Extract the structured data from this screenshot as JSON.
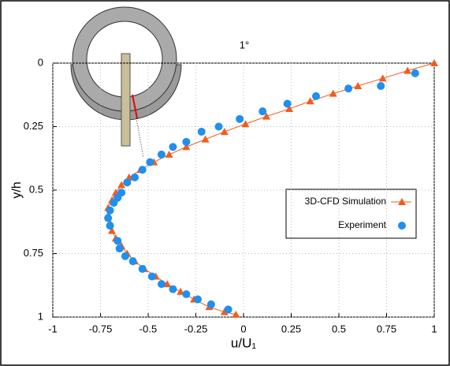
{
  "chart_data": {
    "type": "scatter",
    "title": "1°",
    "xlabel": "u/U₁",
    "ylabel": "y/h",
    "xlim": [
      -1,
      1
    ],
    "ylim": [
      0,
      1
    ],
    "y_inverted": true,
    "grid": true,
    "legend": "right",
    "xticks": [
      -1,
      -0.75,
      -0.5,
      -0.25,
      0,
      0.25,
      0.5,
      0.75,
      1
    ],
    "yticks": [
      0,
      0.25,
      0.5,
      0.75,
      1
    ],
    "series": [
      {
        "name": "3D-CFD Simulation",
        "color": "#f25c1e",
        "marker": "triangle",
        "line": true,
        "x": [
          1.0,
          0.86,
          0.73,
          0.6,
          0.47,
          0.35,
          0.24,
          0.12,
          0.01,
          -0.1,
          -0.2,
          -0.3,
          -0.39,
          -0.47,
          -0.54,
          -0.6,
          -0.64,
          -0.67,
          -0.69,
          -0.71,
          -0.71,
          -0.7,
          -0.69,
          -0.67,
          -0.64,
          -0.61,
          -0.57,
          -0.52,
          -0.46,
          -0.4,
          -0.33,
          -0.26,
          -0.18,
          -0.1,
          -0.04
        ],
        "y": [
          0,
          0.03,
          0.06,
          0.09,
          0.12,
          0.15,
          0.18,
          0.21,
          0.24,
          0.27,
          0.3,
          0.33,
          0.36,
          0.39,
          0.42,
          0.45,
          0.48,
          0.51,
          0.54,
          0.57,
          0.6,
          0.63,
          0.66,
          0.69,
          0.72,
          0.75,
          0.78,
          0.81,
          0.84,
          0.87,
          0.9,
          0.93,
          0.96,
          0.98,
          0.99
        ]
      },
      {
        "name": "Experiment",
        "color": "#1f8ff0",
        "marker": "circle",
        "line": false,
        "x": [
          0.9,
          0.72,
          0.55,
          0.38,
          0.23,
          0.1,
          -0.02,
          -0.13,
          -0.22,
          -0.3,
          -0.37,
          -0.43,
          -0.49,
          -0.53,
          -0.57,
          -0.61,
          -0.64,
          -0.66,
          -0.68,
          -0.7,
          -0.71,
          -0.7,
          -0.66,
          -0.65,
          -0.62,
          -0.58,
          -0.53,
          -0.48,
          -0.43,
          -0.37,
          -0.3,
          -0.24,
          -0.17,
          -0.08
        ],
        "y": [
          0.04,
          0.09,
          0.1,
          0.13,
          0.16,
          0.19,
          0.22,
          0.25,
          0.27,
          0.31,
          0.33,
          0.36,
          0.39,
          0.42,
          0.45,
          0.47,
          0.51,
          0.53,
          0.55,
          0.58,
          0.61,
          0.64,
          0.7,
          0.73,
          0.76,
          0.78,
          0.81,
          0.84,
          0.87,
          0.89,
          0.91,
          0.93,
          0.95,
          0.97
        ]
      }
    ]
  }
}
